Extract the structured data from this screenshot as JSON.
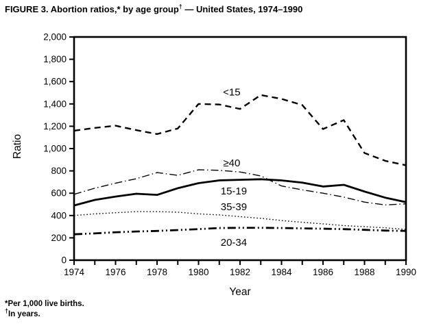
{
  "figure": {
    "title_main": "FIGURE 3. Abortion ratios,* by age group",
    "title_sup": "†",
    "title_tail": " — United States, 1974–1990",
    "footnote1": "*Per 1,000 live births.",
    "footnote2_sup": "†",
    "footnote2_text": "In years."
  },
  "chart_data": {
    "type": "line",
    "title": "FIGURE 3. Abortion ratios, by age group — United States, 1974–1990",
    "xlabel": "Year",
    "ylabel": "Ratio",
    "xlim": [
      1974,
      1990
    ],
    "ylim": [
      0,
      2000
    ],
    "y_tick_step": 200,
    "grid": false,
    "legend": "inline-labels-on-chart",
    "units": "abortions per 1,000 live births",
    "x": [
      1974,
      1975,
      1976,
      1977,
      1978,
      1979,
      1980,
      1981,
      1982,
      1983,
      1984,
      1985,
      1986,
      1987,
      1988,
      1989,
      1990
    ],
    "x_tick_labels": [
      "1974",
      "1976",
      "1978",
      "1980",
      "1982",
      "1984",
      "1986",
      "1988",
      "1990"
    ],
    "y_tick_labels": [
      "0",
      "200",
      "400",
      "600",
      "800",
      "1,000",
      "1,200",
      "1,400",
      "1,600",
      "1,800",
      "2,000"
    ],
    "series": [
      {
        "name": "<15",
        "style": "dashed",
        "label_x": 1981.6,
        "label_y": 1505,
        "values": [
          1160,
          1185,
          1205,
          1165,
          1130,
          1180,
          1400,
          1395,
          1355,
          1480,
          1445,
          1390,
          1175,
          1255,
          960,
          890,
          850
        ]
      },
      {
        "name": "≥40",
        "style": "dash-dot",
        "label_x": 1981.6,
        "label_y": 870,
        "values": [
          590,
          645,
          690,
          730,
          785,
          760,
          810,
          805,
          790,
          755,
          665,
          630,
          600,
          565,
          520,
          495,
          505
        ]
      },
      {
        "name": "15-19",
        "style": "solid",
        "label_x": 1981.7,
        "label_y": 620,
        "values": [
          490,
          540,
          570,
          595,
          585,
          645,
          690,
          715,
          720,
          725,
          715,
          695,
          660,
          675,
          615,
          560,
          520
        ]
      },
      {
        "name": "35-39",
        "style": "dotted",
        "label_x": 1981.7,
        "label_y": 480,
        "values": [
          400,
          415,
          425,
          435,
          435,
          430,
          415,
          405,
          390,
          375,
          355,
          340,
          325,
          310,
          300,
          290,
          275
        ]
      },
      {
        "name": "20-34",
        "style": "dash-dot-dot",
        "label_x": 1981.7,
        "label_y": 160,
        "values": [
          232,
          240,
          250,
          257,
          262,
          270,
          278,
          288,
          290,
          290,
          288,
          285,
          282,
          278,
          272,
          265,
          262
        ]
      }
    ],
    "footnotes": [
      "*Per 1,000 live births.",
      "†In years."
    ]
  }
}
